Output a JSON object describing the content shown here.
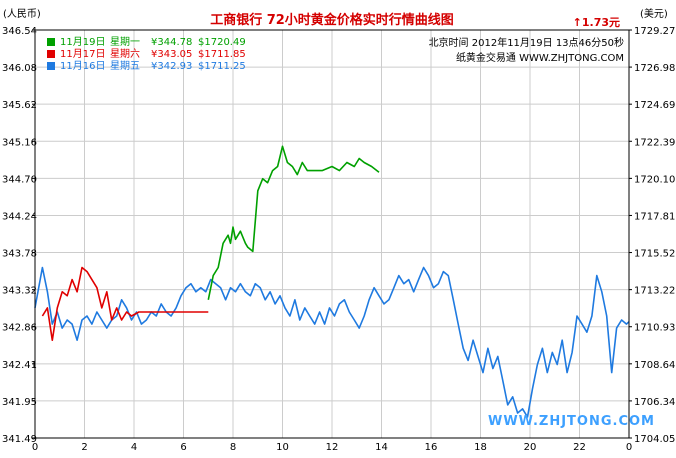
{
  "chart_data": {
    "type": "line",
    "title": "工商银行  72小时黄金价格实时行情曲线图",
    "change_label": "↑1.73元",
    "ylabel_left": "(人民币)",
    "ylabel_right": "(美元)",
    "timestamp": "北京时间  2012年11月19日  13点46分50秒",
    "source": "纸黄金交易通  WWW.ZHJTONG.COM",
    "watermark": "WWW.ZHJTONG.COM",
    "x_ticks": [
      "0",
      "2",
      "4",
      "6",
      "8",
      "10",
      "12",
      "14",
      "16",
      "18",
      "20",
      "22",
      "0"
    ],
    "y_left_ticks": [
      "346.54",
      "346.08",
      "345.62",
      "345.16",
      "344.70",
      "344.24",
      "343.78",
      "343.32",
      "342.86",
      "342.41",
      "341.95",
      "341.49"
    ],
    "y_right_ticks": [
      "1729.27",
      "1726.98",
      "1724.69",
      "1722.39",
      "1720.10",
      "1717.81",
      "1715.52",
      "1713.22",
      "1710.93",
      "1708.64",
      "1706.34",
      "1704.05"
    ],
    "ylim_left": [
      341.49,
      346.54
    ],
    "xlim_hours": [
      0,
      24
    ],
    "grid": true,
    "legend_position": "top-left",
    "series": [
      {
        "name": "11月19日",
        "weekday": "星期一",
        "price_cny": "¥344.78",
        "price_usd": "$1720.49",
        "color": "#00a000",
        "x": [
          7.0,
          7.2,
          7.4,
          7.6,
          7.8,
          7.9,
          8.0,
          8.1,
          8.3,
          8.5,
          8.6,
          8.8,
          9.0,
          9.2,
          9.4,
          9.6,
          9.8,
          10.0,
          10.2,
          10.4,
          10.6,
          10.8,
          11.0,
          11.3,
          11.6,
          12.0,
          12.3,
          12.6,
          12.9,
          13.1,
          13.3,
          13.6,
          13.9
        ],
        "y": [
          343.2,
          343.5,
          343.6,
          343.9,
          344.0,
          343.9,
          344.1,
          343.95,
          344.05,
          343.9,
          343.85,
          343.8,
          344.55,
          344.7,
          344.65,
          344.8,
          344.85,
          345.1,
          344.9,
          344.85,
          344.75,
          344.9,
          344.8,
          344.8,
          344.8,
          344.85,
          344.8,
          344.9,
          344.85,
          344.95,
          344.9,
          344.85,
          344.78
        ]
      },
      {
        "name": "11月17日",
        "weekday": "星期六",
        "price_cny": "¥343.05",
        "price_usd": "$1711.85",
        "color": "#e00000",
        "x": [
          0.3,
          0.5,
          0.7,
          0.9,
          1.1,
          1.3,
          1.5,
          1.7,
          1.9,
          2.1,
          2.3,
          2.5,
          2.7,
          2.9,
          3.1,
          3.3,
          3.5,
          3.7,
          3.9,
          4.2,
          4.6,
          5.0,
          5.5,
          6.0,
          6.4,
          7.0
        ],
        "y": [
          343.0,
          343.1,
          342.7,
          343.1,
          343.3,
          343.25,
          343.45,
          343.3,
          343.6,
          343.55,
          343.45,
          343.35,
          343.1,
          343.3,
          342.95,
          343.1,
          342.95,
          343.05,
          343.0,
          343.05,
          343.05,
          343.05,
          343.05,
          343.05,
          343.05,
          343.05
        ]
      },
      {
        "name": "11月16日",
        "weekday": "星期五",
        "price_cny": "¥342.93",
        "price_usd": "$1711.25",
        "color": "#1f7ae0",
        "x": [
          0.0,
          0.3,
          0.5,
          0.7,
          0.9,
          1.1,
          1.3,
          1.5,
          1.7,
          1.9,
          2.1,
          2.3,
          2.5,
          2.7,
          2.9,
          3.1,
          3.3,
          3.5,
          3.7,
          3.9,
          4.1,
          4.3,
          4.5,
          4.7,
          4.9,
          5.1,
          5.3,
          5.5,
          5.7,
          5.9,
          6.1,
          6.3,
          6.5,
          6.7,
          6.9,
          7.1,
          7.3,
          7.5,
          7.7,
          7.9,
          8.1,
          8.3,
          8.5,
          8.7,
          8.9,
          9.1,
          9.3,
          9.5,
          9.7,
          9.9,
          10.1,
          10.3,
          10.5,
          10.7,
          10.9,
          11.1,
          11.3,
          11.5,
          11.7,
          11.9,
          12.1,
          12.3,
          12.5,
          12.7,
          12.9,
          13.1,
          13.3,
          13.5,
          13.7,
          13.9,
          14.1,
          14.3,
          14.5,
          14.7,
          14.9,
          15.1,
          15.3,
          15.5,
          15.7,
          15.9,
          16.1,
          16.3,
          16.5,
          16.7,
          16.9,
          17.1,
          17.3,
          17.5,
          17.7,
          17.9,
          18.1,
          18.3,
          18.5,
          18.7,
          18.9,
          19.1,
          19.3,
          19.5,
          19.7,
          19.9,
          20.1,
          20.3,
          20.5,
          20.7,
          20.9,
          21.1,
          21.3,
          21.5,
          21.7,
          21.9,
          22.1,
          22.3,
          22.5,
          22.7,
          22.9,
          23.1,
          23.3,
          23.5,
          23.7,
          23.9,
          24.0
        ],
        "y": [
          343.1,
          343.6,
          343.3,
          342.9,
          343.05,
          342.85,
          342.95,
          342.9,
          342.7,
          342.95,
          343.0,
          342.9,
          343.05,
          342.95,
          342.85,
          342.95,
          343.0,
          343.2,
          343.1,
          342.95,
          343.05,
          342.9,
          342.95,
          343.05,
          343.0,
          343.15,
          343.05,
          343.0,
          343.1,
          343.25,
          343.35,
          343.4,
          343.3,
          343.35,
          343.3,
          343.45,
          343.4,
          343.35,
          343.2,
          343.35,
          343.3,
          343.4,
          343.3,
          343.25,
          343.4,
          343.35,
          343.2,
          343.3,
          343.15,
          343.25,
          343.1,
          343.0,
          343.2,
          342.95,
          343.1,
          343.0,
          342.9,
          343.05,
          342.9,
          343.1,
          343.0,
          343.15,
          343.2,
          343.05,
          342.95,
          342.85,
          343.0,
          343.2,
          343.35,
          343.25,
          343.15,
          343.2,
          343.35,
          343.5,
          343.4,
          343.45,
          343.3,
          343.45,
          343.6,
          343.5,
          343.35,
          343.4,
          343.55,
          343.5,
          343.2,
          342.9,
          342.6,
          342.45,
          342.7,
          342.5,
          342.3,
          342.6,
          342.35,
          342.5,
          342.2,
          341.9,
          342.0,
          341.8,
          341.85,
          341.75,
          342.1,
          342.4,
          342.6,
          342.3,
          342.55,
          342.4,
          342.7,
          342.3,
          342.55,
          343.0,
          342.9,
          342.8,
          343.0,
          343.5,
          343.3,
          343.0,
          342.3,
          342.85,
          342.95,
          342.9,
          342.93
        ]
      }
    ]
  }
}
